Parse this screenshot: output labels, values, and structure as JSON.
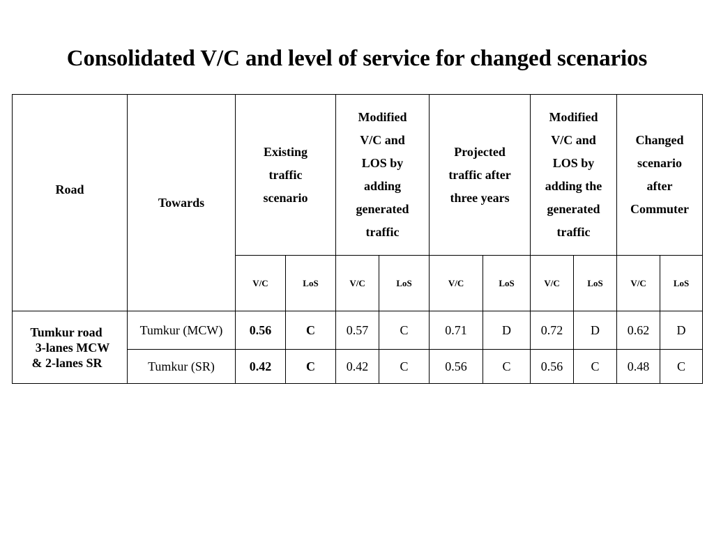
{
  "title": "Consolidated V/C and level of service for changed scenarios",
  "headers": {
    "road": "Road",
    "towards": "Towards",
    "groups": [
      [
        "Existing",
        "traffic",
        "scenario"
      ],
      [
        "Modified",
        "V/C and",
        "LOS by",
        "adding",
        "generated",
        "traffic"
      ],
      [
        "Projected",
        "traffic after",
        "three years"
      ],
      [
        "Modified",
        "V/C and",
        "LOS by",
        "adding the",
        "generated",
        "traffic"
      ],
      [
        "Changed",
        "scenario",
        "after",
        "Commuter"
      ]
    ],
    "vc": "V/C",
    "los": "LoS"
  },
  "road_name": [
    "Tumkur road",
    "3-lanes MCW",
    "& 2-lanes SR"
  ],
  "rows": [
    {
      "towards": "Tumkur (MCW)",
      "values": [
        "0.56",
        "C",
        "0.57",
        "C",
        "0.71",
        "D",
        "0.72",
        "D",
        "0.62",
        "D"
      ]
    },
    {
      "towards": "Tumkur (SR)",
      "values": [
        "0.42",
        "C",
        "0.42",
        "C",
        "0.56",
        "C",
        "0.56",
        "C",
        "0.48",
        "C"
      ]
    }
  ]
}
